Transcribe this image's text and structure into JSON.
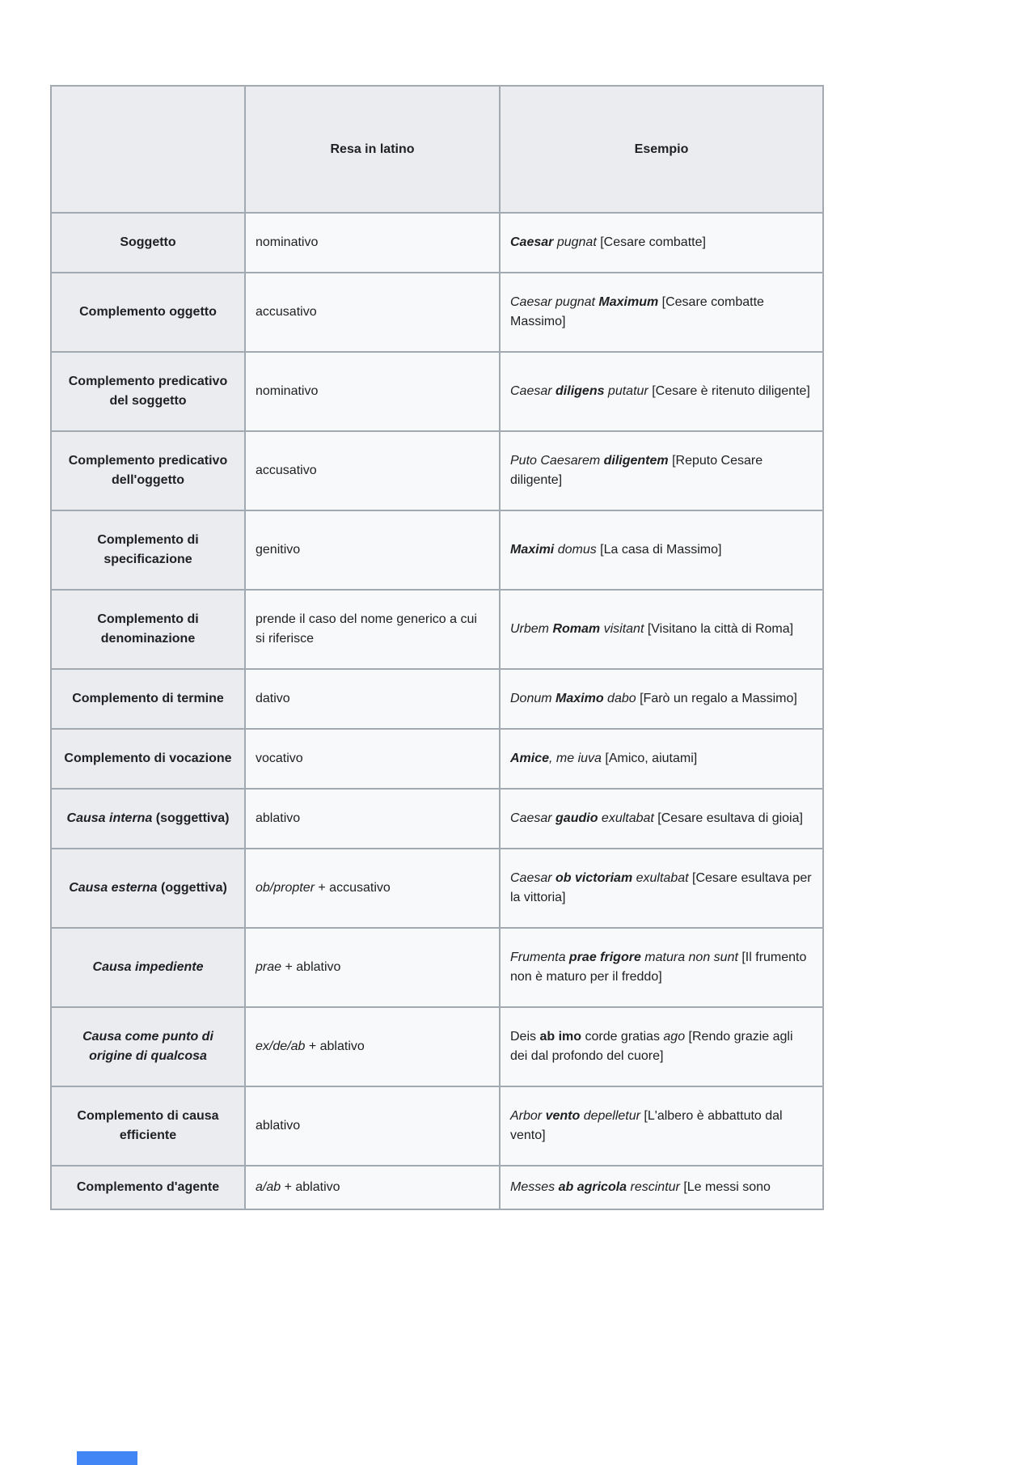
{
  "colors": {
    "border": "#a2a9b1",
    "header_background": "#eaecf0",
    "cell_background": "#f8f9fa",
    "text": "#202122",
    "partial_element_blue": "#4285f4"
  },
  "table": {
    "headers": {
      "corner": "",
      "resa": "Resa in latino",
      "esempio": "Esempio"
    },
    "rows": [
      {
        "label": [
          {
            "t": "Soggetto",
            "b": true
          }
        ],
        "latin": [
          {
            "t": "nominativo"
          }
        ],
        "example": [
          {
            "t": "Caesar",
            "b": true,
            "i": true
          },
          {
            "t": " pugnat ",
            "i": true
          },
          {
            "t": "[Cesare combatte]"
          }
        ]
      },
      {
        "label": [
          {
            "t": "Complemento oggetto",
            "b": true
          }
        ],
        "latin": [
          {
            "t": "accusativo"
          }
        ],
        "example": [
          {
            "t": "Caesar pugnat ",
            "i": true
          },
          {
            "t": "Maximum",
            "b": true,
            "i": true
          },
          {
            "t": " [Cesare combatte Massimo]"
          }
        ]
      },
      {
        "label": [
          {
            "t": "Complemento predicativo del soggetto",
            "b": true
          }
        ],
        "latin": [
          {
            "t": "nominativo"
          }
        ],
        "example": [
          {
            "t": "Caesar ",
            "i": true
          },
          {
            "t": "diligens",
            "b": true,
            "i": true
          },
          {
            "t": " putatur ",
            "i": true
          },
          {
            "t": "[Cesare è ritenuto diligente]"
          }
        ]
      },
      {
        "label": [
          {
            "t": "Complemento predicativo dell'oggetto",
            "b": true
          }
        ],
        "latin": [
          {
            "t": "accusativo"
          }
        ],
        "example": [
          {
            "t": "Puto Caesarem ",
            "i": true
          },
          {
            "t": "diligentem",
            "b": true,
            "i": true
          },
          {
            "t": " [Reputo Cesare diligente]"
          }
        ]
      },
      {
        "label": [
          {
            "t": "Complemento di specificazione",
            "b": true
          }
        ],
        "latin": [
          {
            "t": "genitivo"
          }
        ],
        "example": [
          {
            "t": "Maximi",
            "b": true,
            "i": true
          },
          {
            "t": " domus ",
            "i": true
          },
          {
            "t": "[La casa di Massimo]"
          }
        ]
      },
      {
        "label": [
          {
            "t": "Complemento di denominazione",
            "b": true
          }
        ],
        "latin": [
          {
            "t": "prende il caso del nome generico a cui si riferisce"
          }
        ],
        "example": [
          {
            "t": "Urbem ",
            "i": true
          },
          {
            "t": "Romam",
            "b": true,
            "i": true
          },
          {
            "t": " visitant ",
            "i": true
          },
          {
            "t": "[Visitano la città di Roma]"
          }
        ]
      },
      {
        "label": [
          {
            "t": "Complemento di termine",
            "b": true
          }
        ],
        "latin": [
          {
            "t": "dativo"
          }
        ],
        "example": [
          {
            "t": "Donum ",
            "i": true
          },
          {
            "t": "Maximo",
            "b": true,
            "i": true
          },
          {
            "t": " dabo ",
            "i": true
          },
          {
            "t": "[Farò un regalo a Massimo]"
          }
        ]
      },
      {
        "label": [
          {
            "t": "Complemento di vocazione",
            "b": true
          }
        ],
        "latin": [
          {
            "t": "vocativo"
          }
        ],
        "example": [
          {
            "t": "Amice",
            "b": true,
            "i": true
          },
          {
            "t": ", me iuva ",
            "i": true
          },
          {
            "t": "[Amico, aiutami]"
          }
        ]
      },
      {
        "label": [
          {
            "t": "Causa interna",
            "b": true,
            "i": true
          },
          {
            "t": " (soggettiva)",
            "b": true
          }
        ],
        "latin": [
          {
            "t": "ablativo"
          }
        ],
        "example": [
          {
            "t": "Caesar ",
            "i": true
          },
          {
            "t": "gaudio",
            "b": true,
            "i": true
          },
          {
            "t": " exultabat ",
            "i": true
          },
          {
            "t": "[Cesare esultava di gioia]"
          }
        ]
      },
      {
        "label": [
          {
            "t": "Causa esterna",
            "b": true,
            "i": true
          },
          {
            "t": " (oggettiva)",
            "b": true
          }
        ],
        "latin": [
          {
            "t": "ob/propter",
            "i": true
          },
          {
            "t": " + accusativo"
          }
        ],
        "example": [
          {
            "t": "Caesar ",
            "i": true
          },
          {
            "t": "ob victoriam",
            "b": true,
            "i": true
          },
          {
            "t": " exultabat ",
            "i": true
          },
          {
            "t": "[Cesare esultava per la vittoria]"
          }
        ]
      },
      {
        "label": [
          {
            "t": "Causa impediente",
            "b": true,
            "i": true
          }
        ],
        "latin": [
          {
            "t": "prae",
            "i": true
          },
          {
            "t": " + ablativo"
          }
        ],
        "example": [
          {
            "t": "Frumenta ",
            "i": true
          },
          {
            "t": "prae frigore",
            "b": true,
            "i": true
          },
          {
            "t": " matura non sunt ",
            "i": true
          },
          {
            "t": "[Il frumento non è maturo per il freddo]"
          }
        ]
      },
      {
        "label": [
          {
            "t": "Causa come punto di origine di qualcosa",
            "b": true,
            "i": true
          }
        ],
        "latin": [
          {
            "t": "ex/de/ab",
            "i": true
          },
          {
            "t": " + ablativo"
          }
        ],
        "example": [
          {
            "t": "Deis "
          },
          {
            "t": "ab imo",
            "b": true
          },
          {
            "t": " corde gratias "
          },
          {
            "t": "ago",
            "i": true
          },
          {
            "t": " [Rendo grazie agli dei dal profondo del cuore]"
          }
        ]
      },
      {
        "label": [
          {
            "t": "Complemento di causa efficiente",
            "b": true
          }
        ],
        "latin": [
          {
            "t": "ablativo"
          }
        ],
        "example": [
          {
            "t": "Arbor ",
            "i": true
          },
          {
            "t": "vento",
            "b": true,
            "i": true
          },
          {
            "t": " depelletur ",
            "i": true
          },
          {
            "t": "[L'albero è abbattuto dal vento]"
          }
        ]
      },
      {
        "label": [
          {
            "t": "Complemento d'agente",
            "b": true
          }
        ],
        "latin": [
          {
            "t": "a/ab",
            "i": true
          },
          {
            "t": " + ablativo"
          }
        ],
        "example": [
          {
            "t": "Messes ",
            "i": true
          },
          {
            "t": "ab agricola",
            "b": true,
            "i": true
          },
          {
            "t": " rescintur ",
            "i": true
          },
          {
            "t": "[Le messi sono"
          }
        ],
        "cut": true
      }
    ]
  },
  "partial_element": {
    "description": "partially visible blue element at bottom of page"
  }
}
